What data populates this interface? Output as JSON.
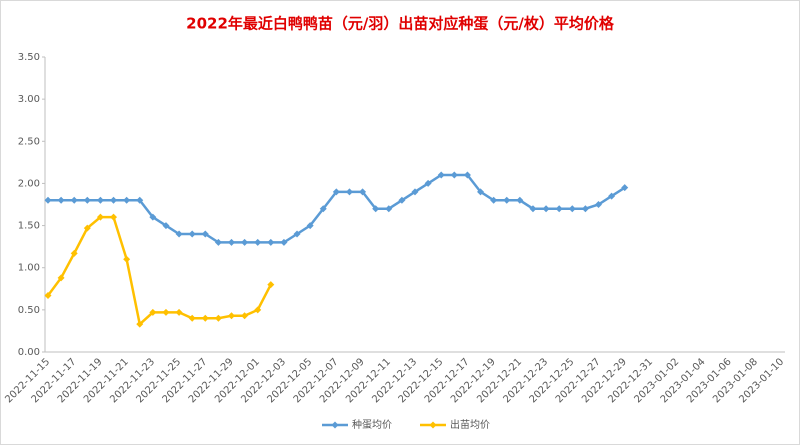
{
  "chart_data": {
    "type": "line",
    "title": "2022年最近白鸭鸭苗（元/羽）出苗对应种蛋（元/枚）平均价格",
    "categories": [
      "2022-11-15",
      null,
      "2022-11-17",
      null,
      "2022-11-19",
      null,
      "2022-11-21",
      null,
      "2022-11-23",
      null,
      "2022-11-25",
      null,
      "2022-11-27",
      null,
      "2022-11-29",
      null,
      "2022-12-01",
      null,
      "2022-12-03",
      null,
      "2022-12-05",
      null,
      "2022-12-07",
      null,
      "2022-12-09",
      null,
      "2022-12-11",
      null,
      "2022-12-13",
      null,
      "2022-12-15",
      null,
      "2022-12-17",
      null,
      "2022-12-19",
      null,
      "2022-12-21",
      null,
      "2022-12-23",
      null,
      "2022-12-25",
      null,
      "2022-12-27",
      null,
      "2022-12-29",
      null,
      "2022-12-31",
      null,
      "2023-01-02",
      null,
      "2023-01-04",
      null,
      "2023-01-06",
      null,
      "2023-01-08",
      null,
      "2023-01-10"
    ],
    "series": [
      {
        "name": "种蛋均价",
        "color": "#5b9bd5",
        "values": [
          1.8,
          1.8,
          1.8,
          1.8,
          1.8,
          1.8,
          1.8,
          1.8,
          1.6,
          1.5,
          1.4,
          1.4,
          1.4,
          1.3,
          1.3,
          1.3,
          1.3,
          1.3,
          1.3,
          1.4,
          1.5,
          1.7,
          1.9,
          1.9,
          1.9,
          1.7,
          1.7,
          1.8,
          1.9,
          2.0,
          2.1,
          2.1,
          2.1,
          1.9,
          1.8,
          1.8,
          1.8,
          1.7,
          1.7,
          1.7,
          1.7,
          1.7,
          1.75,
          1.85,
          1.95,
          null,
          null,
          null,
          null,
          null,
          null,
          null,
          null,
          null,
          null,
          null,
          null
        ]
      },
      {
        "name": "出苗均价",
        "color": "#ffc000",
        "values": [
          0.67,
          0.88,
          1.17,
          1.47,
          1.6,
          1.6,
          1.1,
          0.33,
          0.47,
          0.47,
          0.47,
          0.4,
          0.4,
          0.4,
          0.43,
          0.43,
          0.5,
          0.8,
          null,
          null,
          null,
          null,
          null,
          null,
          null,
          null,
          null,
          null,
          null,
          null,
          null,
          null,
          null,
          null,
          null,
          null,
          null,
          null,
          null,
          null,
          null,
          null,
          null,
          null,
          null,
          null,
          null,
          null,
          null,
          null,
          null,
          null,
          null,
          null,
          null,
          null,
          null
        ]
      }
    ],
    "ylim": [
      0,
      3.5
    ],
    "yticks": [
      {
        "value": 0,
        "label": "0.00"
      },
      {
        "value": 0.5,
        "label": "0.50"
      },
      {
        "value": 1,
        "label": "1.00"
      },
      {
        "value": 1.5,
        "label": "1.50"
      },
      {
        "value": 2,
        "label": "2.00"
      },
      {
        "value": 2.5,
        "label": "2.50"
      },
      {
        "value": 3,
        "label": "3.00"
      },
      {
        "value": 3.5,
        "label": "3.50"
      }
    ],
    "grid": false
  }
}
